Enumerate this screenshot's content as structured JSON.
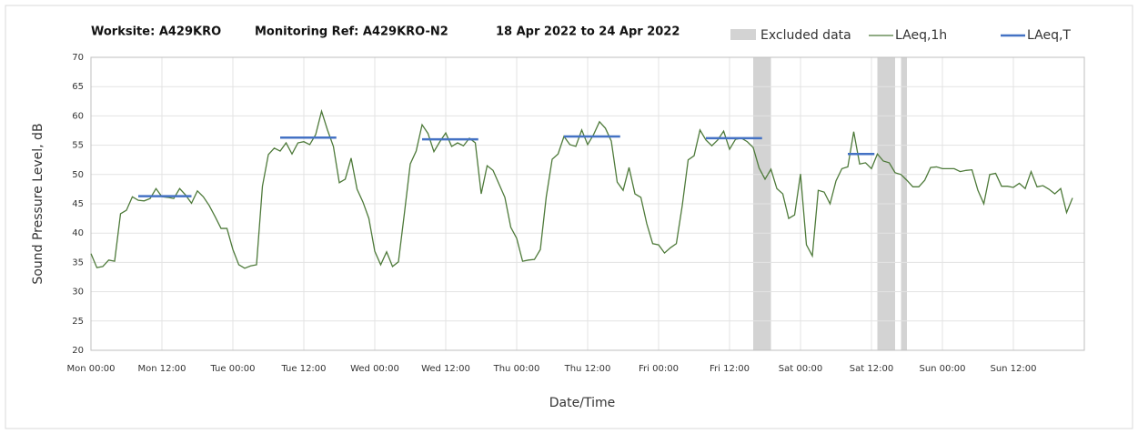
{
  "chart_data": {
    "type": "line",
    "title": [
      "Worksite: A429KRO",
      "Monitoring Ref: A429KRO-N2",
      "18 Apr 2022 to 24 Apr 2022"
    ],
    "xlabel": "Date/Time",
    "ylabel": "Sound Pressure Level, dB",
    "xlim": [
      0,
      168
    ],
    "ylim": [
      20,
      70
    ],
    "xticks": [
      {
        "value": 0,
        "label": "Mon 00:00"
      },
      {
        "value": 12,
        "label": "Mon 12:00"
      },
      {
        "value": 24,
        "label": "Tue 00:00"
      },
      {
        "value": 36,
        "label": "Tue 12:00"
      },
      {
        "value": 48,
        "label": "Wed 00:00"
      },
      {
        "value": 60,
        "label": "Wed 12:00"
      },
      {
        "value": 72,
        "label": "Thu 00:00"
      },
      {
        "value": 84,
        "label": "Thu 12:00"
      },
      {
        "value": 96,
        "label": "Fri 00:00"
      },
      {
        "value": 108,
        "label": "Fri 12:00"
      },
      {
        "value": 120,
        "label": "Sat 00:00"
      },
      {
        "value": 132,
        "label": "Sat 12:00"
      },
      {
        "value": 144,
        "label": "Sun 00:00"
      },
      {
        "value": 156,
        "label": "Sun 12:00"
      }
    ],
    "yticks": [
      20,
      25,
      30,
      35,
      40,
      45,
      50,
      55,
      60,
      65,
      70
    ],
    "grid": true,
    "excluded": {
      "name": "Excluded data",
      "color": "#d3d3d3",
      "ranges": [
        [
          112,
          115
        ],
        [
          133,
          136
        ],
        [
          137,
          138
        ]
      ]
    },
    "series": [
      {
        "name": "LAeq,1h",
        "color": "#4e7a3a",
        "x": [
          0,
          1,
          2,
          3,
          4,
          5,
          6,
          7,
          8,
          9,
          10,
          11,
          12,
          13,
          14,
          15,
          16,
          17,
          18,
          19,
          20,
          21,
          22,
          23,
          24,
          25,
          26,
          27,
          28,
          29,
          30,
          31,
          32,
          33,
          34,
          35,
          36,
          37,
          38,
          39,
          40,
          41,
          42,
          43,
          44,
          45,
          46,
          47,
          48,
          49,
          50,
          51,
          52,
          53,
          54,
          55,
          56,
          57,
          58,
          59,
          60,
          61,
          62,
          63,
          64,
          65,
          66,
          67,
          68,
          69,
          70,
          71,
          72,
          73,
          74,
          75,
          76,
          77,
          78,
          79,
          80,
          81,
          82,
          83,
          84,
          85,
          86,
          87,
          88,
          89,
          90,
          91,
          92,
          93,
          94,
          95,
          96,
          97,
          98,
          99,
          100,
          101,
          102,
          103,
          104,
          105,
          106,
          107,
          108,
          109,
          110,
          111,
          112,
          113,
          114,
          115,
          116,
          117,
          118,
          119,
          120,
          121,
          122,
          123,
          124,
          125,
          126,
          127,
          128,
          129,
          130,
          131,
          132,
          133,
          134,
          135,
          136,
          137,
          138,
          139,
          140,
          141,
          142,
          143,
          144,
          145,
          146,
          147,
          148,
          149,
          150,
          151,
          152,
          153,
          154,
          155,
          156,
          157,
          158,
          159,
          160,
          161,
          162,
          163,
          164,
          165,
          166
        ],
        "values": [
          36.5,
          34.1,
          34.3,
          35.4,
          35.2,
          43.3,
          43.9,
          46.2,
          45.6,
          45.5,
          45.9,
          47.6,
          46.2,
          46.1,
          45.9,
          47.6,
          46.5,
          45.1,
          47.2,
          46.2,
          44.7,
          42.8,
          40.8,
          40.8,
          37.2,
          34.6,
          34.0,
          34.4,
          34.6,
          48.0,
          53.4,
          54.5,
          54.0,
          55.4,
          53.5,
          55.4,
          55.6,
          55.1,
          56.8,
          60.8,
          57.6,
          54.8,
          48.6,
          49.2,
          52.8,
          47.5,
          45.3,
          42.5,
          36.9,
          34.6,
          36.8,
          34.3,
          35.1,
          43.3,
          51.8,
          54.0,
          58.5,
          57.0,
          53.9,
          55.6,
          57.1,
          54.8,
          55.4,
          54.9,
          56.2,
          55.4,
          46.7,
          51.5,
          50.7,
          48.4,
          46.1,
          41.0,
          39.1,
          35.2,
          35.4,
          35.5,
          37.2,
          46.2,
          52.6,
          53.5,
          56.5,
          55.1,
          54.8,
          57.6,
          55.1,
          56.8,
          59.0,
          57.9,
          55.7,
          48.7,
          47.3,
          51.2,
          46.7,
          46.1,
          41.6,
          38.2,
          38.0,
          36.6,
          37.5,
          38.2,
          44.7,
          52.5,
          53.2,
          57.6,
          55.9,
          54.9,
          55.9,
          57.4,
          54.3,
          56.0,
          56.2,
          55.6,
          54.6,
          51.1,
          49.2,
          50.9,
          47.6,
          46.7,
          42.5,
          43.1,
          50.1,
          38.0,
          36.1,
          47.3,
          47.0,
          45.0,
          48.9,
          51.0,
          51.3,
          57.3,
          51.8,
          52.0,
          51.0,
          53.5,
          52.3,
          52.0,
          50.3,
          50.0,
          49.0,
          47.9,
          47.9,
          49.0,
          51.2,
          51.3,
          51.0,
          51.0,
          51.0,
          50.5,
          50.7,
          50.8,
          47.3,
          45.0,
          50.0,
          50.2,
          48.0,
          48.0,
          47.8,
          48.5,
          47.6,
          50.5,
          47.9,
          48.1,
          47.5,
          46.7,
          47.6,
          43.5,
          46.0
        ]
      },
      {
        "name": "LAeq,T",
        "color": "#4472c4",
        "x_start": [
          8,
          32,
          56,
          80,
          104,
          128
        ],
        "x_end": [
          17,
          41.5,
          65.5,
          89.5,
          113.5,
          132.5
        ],
        "values": [
          46.3,
          56.3,
          56.0,
          56.5,
          56.2,
          53.5
        ]
      }
    ]
  }
}
